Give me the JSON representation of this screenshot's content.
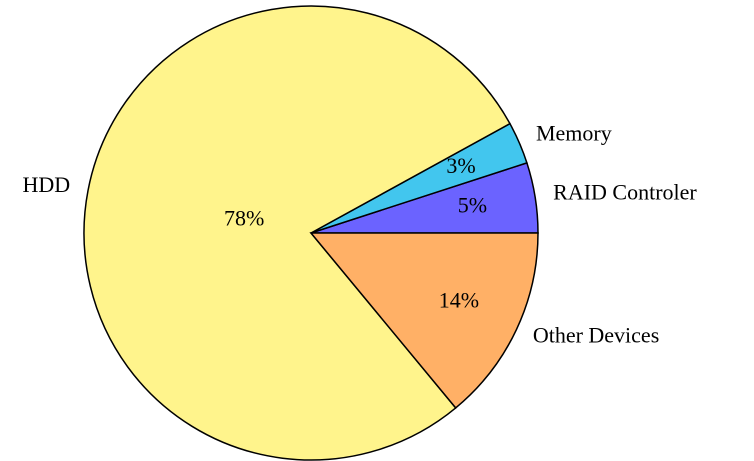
{
  "chart_data": {
    "type": "pie",
    "categories": [
      "RAID Controler",
      "Memory",
      "HDD",
      "Other Devices"
    ],
    "values": [
      5,
      3,
      78,
      14
    ],
    "value_labels": [
      "5%",
      "3%",
      "78%",
      "14%"
    ],
    "colors": [
      "#6b63ff",
      "#42c6ee",
      "#fff48c",
      "#ffb066"
    ]
  }
}
